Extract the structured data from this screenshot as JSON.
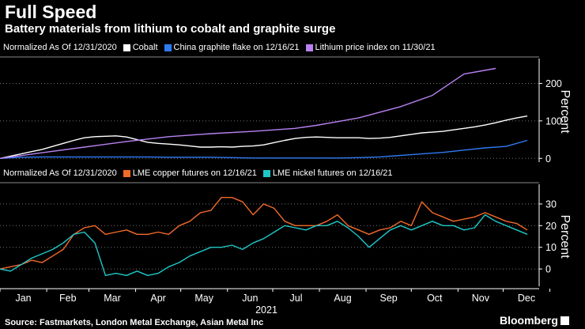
{
  "title": "Full Speed",
  "subtitle": "Battery materials from lithium to cobalt and graphite surge",
  "footer": {
    "source": "Source: Fastmarkets, London Metal Exchange, Asian Metal Inc",
    "brand": "Bloomberg"
  },
  "panels": {
    "top": {
      "legend_prefix": "Normalized As Of 12/31/2020"
    },
    "bottom": {
      "legend_prefix": "Normalized As Of 12/31/2020"
    }
  },
  "chart_data": [
    {
      "type": "line",
      "x_unit": "week starting 2021-01-01",
      "xlabel": "2021",
      "ylabel": "Percent",
      "y_axis_side": "right",
      "x_ticks": [
        "Jan",
        "Feb",
        "Mar",
        "Apr",
        "May",
        "Jun",
        "Jul",
        "Aug",
        "Sep",
        "Oct",
        "Nov",
        "Dec"
      ],
      "y_ticks": [
        0,
        100,
        200
      ],
      "ylim": [
        -10,
        260
      ],
      "grid": false,
      "legend_position": "top-left",
      "series": [
        {
          "name": "Cobalt",
          "color": "#ffffff",
          "x": [
            0,
            1,
            2,
            3,
            4,
            5,
            6,
            7,
            8,
            9,
            10,
            11,
            12,
            13,
            14,
            15,
            16,
            17,
            18,
            19,
            20,
            21,
            22,
            23,
            24,
            25,
            26,
            27,
            28,
            29,
            30,
            31,
            32,
            33,
            34,
            35,
            36,
            37,
            38,
            39,
            40,
            41,
            42,
            43,
            44,
            45,
            46,
            47,
            48,
            49,
            50
          ],
          "y": [
            0,
            6,
            12,
            18,
            24,
            32,
            40,
            48,
            55,
            58,
            59,
            60,
            57,
            50,
            43,
            40,
            38,
            36,
            33,
            30,
            30,
            31,
            30,
            32,
            33,
            36,
            42,
            48,
            53,
            56,
            57,
            56,
            55,
            55,
            55,
            53,
            54,
            56,
            60,
            64,
            68,
            70,
            72,
            76,
            80,
            84,
            89,
            95,
            102,
            108,
            113
          ]
        },
        {
          "name": "China graphite flake on 12/16/21",
          "color": "#2f7bf6",
          "x": [
            0,
            2,
            4,
            6,
            8,
            10,
            12,
            14,
            16,
            18,
            20,
            22,
            24,
            26,
            28,
            30,
            32,
            34,
            36,
            38,
            40,
            42,
            44,
            46,
            48,
            50
          ],
          "y": [
            0,
            3,
            4,
            4,
            4,
            4,
            4,
            4,
            3,
            3,
            3,
            2,
            1,
            1,
            1,
            1,
            1,
            2,
            4,
            8,
            12,
            16,
            22,
            28,
            32,
            48
          ]
        },
        {
          "name": "Lithium price index on 11/30/21",
          "color": "#b982f2",
          "x": [
            0,
            4,
            8,
            12,
            16,
            20,
            24,
            28,
            30,
            32,
            34,
            38,
            41,
            44,
            47
          ],
          "y": [
            0,
            15,
            30,
            45,
            58,
            66,
            72,
            80,
            88,
            98,
            108,
            138,
            168,
            225,
            240
          ]
        }
      ]
    },
    {
      "type": "line",
      "x_unit": "week starting 2021-01-01",
      "xlabel": "2021",
      "ylabel": "Percent",
      "y_axis_side": "right",
      "x_ticks": [
        "Jan",
        "Feb",
        "Mar",
        "Apr",
        "May",
        "Jun",
        "Jul",
        "Aug",
        "Sep",
        "Oct",
        "Nov",
        "Dec"
      ],
      "y_ticks": [
        0,
        10,
        20,
        30
      ],
      "ylim": [
        -8,
        38
      ],
      "grid": false,
      "legend_position": "top-left",
      "series": [
        {
          "name": "LME copper futures on 12/16/21",
          "color": "#f26a2a",
          "x": [
            0,
            1,
            2,
            3,
            4,
            5,
            6,
            7,
            8,
            9,
            10,
            11,
            12,
            13,
            14,
            15,
            16,
            17,
            18,
            19,
            20,
            21,
            22,
            23,
            24,
            25,
            26,
            27,
            28,
            29,
            30,
            31,
            32,
            33,
            34,
            35,
            36,
            37,
            38,
            39,
            40,
            41,
            42,
            43,
            44,
            45,
            46,
            47,
            48,
            49,
            50
          ],
          "y": [
            0,
            1,
            2,
            4,
            3,
            6,
            9,
            16,
            19,
            20,
            16,
            17,
            18,
            16,
            16,
            17,
            16,
            20,
            22,
            26,
            27,
            33,
            33,
            31,
            25,
            30,
            28,
            22,
            20,
            20,
            20,
            22,
            25,
            20,
            18,
            16,
            18,
            19,
            22,
            20,
            31,
            26,
            24,
            22,
            23,
            24,
            26,
            24,
            22,
            21,
            18
          ]
        },
        {
          "name": "LME nickel futures on 12/16/21",
          "color": "#1fc8c8",
          "x": [
            0,
            1,
            2,
            3,
            4,
            5,
            6,
            7,
            8,
            9,
            10,
            11,
            12,
            13,
            14,
            15,
            16,
            17,
            18,
            19,
            20,
            21,
            22,
            23,
            24,
            25,
            26,
            27,
            28,
            29,
            30,
            31,
            32,
            33,
            34,
            35,
            36,
            37,
            38,
            39,
            40,
            41,
            42,
            43,
            44,
            45,
            46,
            47,
            48,
            49,
            50
          ],
          "y": [
            0,
            -1,
            2,
            5,
            7,
            9,
            12,
            16,
            17,
            12,
            -3,
            -2,
            -3,
            -1,
            -3,
            -2,
            1,
            3,
            6,
            8,
            10,
            10,
            11,
            9,
            12,
            14,
            17,
            20,
            19,
            18,
            20,
            20,
            22,
            19,
            15,
            10,
            14,
            18,
            20,
            18,
            20,
            22,
            20,
            20,
            18,
            19,
            25,
            22,
            20,
            18,
            16
          ]
        }
      ]
    }
  ]
}
